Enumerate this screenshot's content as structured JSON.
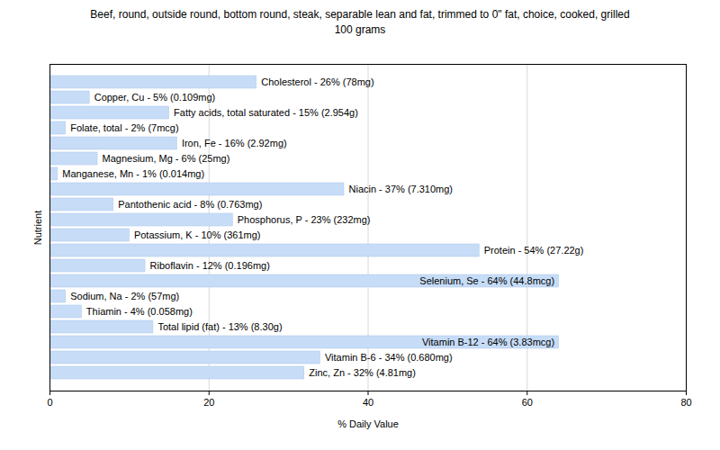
{
  "chart_data": {
    "type": "bar",
    "orientation": "horizontal",
    "title": "Beef, round, outside round, bottom round, steak, separable lean and fat, trimmed to 0\" fat, choice, cooked, grilled",
    "subtitle": "100 grams",
    "x_label": "% Daily Value",
    "y_label": "Nutrient",
    "categories": [
      "Cholesterol - 26% (78mg)",
      "Copper, Cu - 5% (0.109mg)",
      "Fatty acids, total saturated - 15% (2.954g)",
      "Folate, total - 2% (7mcg)",
      "Iron, Fe - 16% (2.92mg)",
      "Magnesium, Mg - 6% (25mg)",
      "Manganese, Mn - 1% (0.014mg)",
      "Niacin - 37% (7.310mg)",
      "Pantothenic acid - 8% (0.763mg)",
      "Phosphorus, P - 23% (232mg)",
      "Potassium, K - 10% (361mg)",
      "Protein - 54% (27.22g)",
      "Riboflavin - 12% (0.196mg)",
      "Selenium, Se - 64% (44.8mcg)",
      "Sodium, Na - 2% (57mg)",
      "Thiamin - 4% (0.058mg)",
      "Total lipid (fat) - 13% (8.30g)",
      "Vitamin B-12 - 64% (3.83mcg)",
      "Vitamin B-6 - 34% (0.680mg)",
      "Zinc, Zn - 32% (4.81mg)"
    ],
    "values": [
      26,
      5,
      15,
      2,
      16,
      6,
      1,
      37,
      8,
      23,
      10,
      54,
      12,
      64,
      2,
      4,
      13,
      64,
      34,
      32
    ],
    "color": "#c6dcf7",
    "xlim": [
      0,
      80
    ],
    "xticks": [
      0,
      20,
      40,
      60,
      80
    ],
    "grid": true,
    "tick_labels": "x"
  }
}
